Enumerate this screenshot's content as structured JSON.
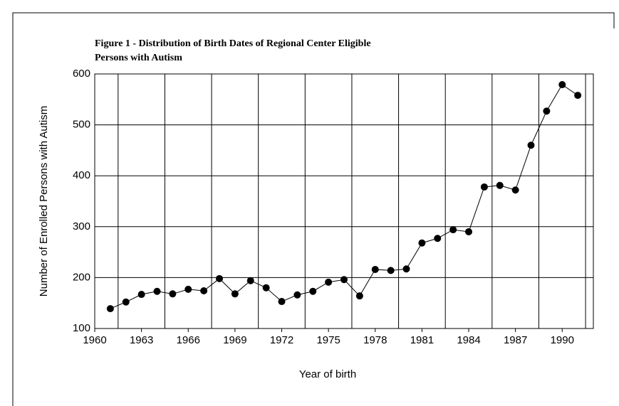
{
  "chart_data": {
    "type": "line",
    "title": [
      "Figure 1 - Distribution of Birth Dates of Regional Center Eligible",
      "Persons with Autism"
    ],
    "xlabel": "Year of birth",
    "ylabel": "Number of Enrolled Persons with Autism",
    "x": [
      1961,
      1962,
      1963,
      1964,
      1965,
      1966,
      1967,
      1968,
      1969,
      1970,
      1971,
      1972,
      1973,
      1974,
      1975,
      1976,
      1977,
      1978,
      1979,
      1980,
      1981,
      1982,
      1983,
      1984,
      1985,
      1986,
      1987,
      1988,
      1989,
      1990,
      1991
    ],
    "series": [
      {
        "color": "#000000",
        "values": [
          139,
          152,
          167,
          173,
          168,
          177,
          174,
          198,
          168,
          194,
          180,
          153,
          166,
          173,
          191,
          196,
          164,
          216,
          214,
          217,
          268,
          277,
          294,
          290,
          378,
          381,
          372,
          460,
          527,
          579,
          558
        ]
      }
    ],
    "xlim": [
      1960,
      1992
    ],
    "xticks": [
      1960,
      1963,
      1966,
      1969,
      1972,
      1975,
      1978,
      1981,
      1984,
      1987,
      1990
    ],
    "xgrid": [
      1961.5,
      1964.5,
      1967.5,
      1970.5,
      1973.5,
      1976.5,
      1979.5,
      1982.5,
      1985.5,
      1988.5,
      1991.5
    ],
    "ylim": [
      100,
      600
    ],
    "yticks": [
      100,
      200,
      300,
      400,
      500,
      600
    ],
    "grid": true
  }
}
